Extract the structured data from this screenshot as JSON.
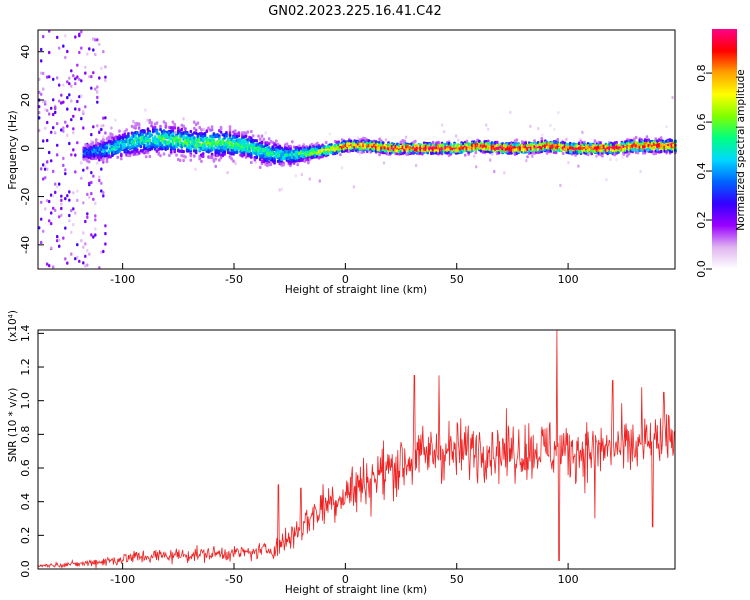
{
  "title": "GN02.2023.225.16.41.C42",
  "chart_data": [
    {
      "type": "heatmap",
      "title": "GN02.2023.225.16.41.C42",
      "xlabel": "Height of straight line (km)",
      "ylabel": "Frequency (Hz)",
      "xlim": [
        -138,
        148
      ],
      "ylim": [
        -50,
        49
      ],
      "x_ticks": [
        -100,
        -50,
        0,
        50,
        100
      ],
      "y_ticks": [
        -40,
        -20,
        0,
        20,
        40
      ],
      "colorbar": {
        "label": "Normalized spectral amplitude",
        "range": [
          0.0,
          0.98
        ],
        "ticks": [
          0.0,
          0.2,
          0.4,
          0.6,
          0.8
        ],
        "colormap": [
          "#ffffff",
          "#e0b4f0",
          "#9a00ff",
          "#3200ff",
          "#0064ff",
          "#00d8ff",
          "#00ff80",
          "#80ff00",
          "#ffff00",
          "#ffa000",
          "#ff0000",
          "#ff0088"
        ]
      },
      "ridge": {
        "x": [
          -118,
          -105,
          -95,
          -85,
          -75,
          -65,
          -55,
          -45,
          -35,
          -25,
          -18,
          -10,
          -5,
          0,
          10,
          20,
          30,
          40,
          50,
          60,
          70,
          80,
          90,
          100,
          110,
          120,
          130,
          140,
          148
        ],
        "y": [
          -2,
          0,
          3,
          4,
          3,
          2,
          2,
          1,
          -2,
          -3,
          -2,
          -1,
          0,
          1,
          1,
          0,
          0,
          0,
          0,
          1,
          0,
          0,
          1,
          0,
          0,
          0,
          1,
          1,
          1
        ],
        "spread": [
          3,
          5,
          6,
          6,
          6,
          6,
          6,
          5,
          5,
          4,
          3,
          2.5,
          2.5,
          2.2,
          2.2,
          2.2,
          2.2,
          2.2,
          2.2,
          2.2,
          2.2,
          2.2,
          2.2,
          2.2,
          2.2,
          2.2,
          2.5,
          2.5,
          2.5
        ],
        "peak": [
          0.35,
          0.45,
          0.5,
          0.55,
          0.55,
          0.55,
          0.55,
          0.55,
          0.5,
          0.5,
          0.6,
          0.7,
          0.8,
          0.85,
          0.9,
          0.95,
          0.95,
          0.95,
          0.95,
          0.95,
          0.95,
          0.95,
          0.95,
          0.95,
          0.95,
          0.95,
          0.9,
          0.9,
          0.9
        ]
      },
      "noise_region_x": [
        -138,
        -108
      ]
    },
    {
      "type": "line",
      "xlabel": "Height of straight line (km)",
      "ylabel": "SNR (10 * v/v)",
      "y_scale_note": "(x10⁴)",
      "xlim": [
        -138,
        148
      ],
      "ylim": [
        0.0,
        1.42
      ],
      "x_ticks": [
        -100,
        -50,
        0,
        50,
        100
      ],
      "y_ticks": [
        0.0,
        0.2,
        0.4,
        0.6,
        0.8,
        1.0,
        1.2,
        1.4
      ],
      "series": [
        {
          "color": "#ee2222",
          "trend_x": [
            -138,
            -120,
            -105,
            -95,
            -80,
            -60,
            -40,
            -30,
            -20,
            -10,
            0,
            10,
            20,
            30,
            40,
            50,
            60,
            70,
            80,
            90,
            95,
            100,
            110,
            120,
            130,
            140,
            148
          ],
          "trend_y": [
            0.02,
            0.03,
            0.05,
            0.07,
            0.08,
            0.09,
            0.1,
            0.13,
            0.25,
            0.38,
            0.45,
            0.52,
            0.6,
            0.65,
            0.7,
            0.7,
            0.72,
            0.7,
            0.7,
            0.72,
            0.7,
            0.7,
            0.7,
            0.72,
            0.72,
            0.75,
            0.78
          ],
          "noise_amp": [
            0.01,
            0.02,
            0.04,
            0.05,
            0.05,
            0.05,
            0.05,
            0.08,
            0.12,
            0.15,
            0.17,
            0.18,
            0.2,
            0.2,
            0.2,
            0.2,
            0.2,
            0.2,
            0.2,
            0.2,
            0.22,
            0.2,
            0.2,
            0.2,
            0.2,
            0.18,
            0.18
          ],
          "spikes": [
            [
              95,
              1.42
            ],
            [
              96,
              0.05
            ],
            [
              31,
              1.15
            ],
            [
              42,
              1.15
            ],
            [
              -30,
              0.5
            ],
            [
              -20,
              0.48
            ],
            [
              120,
              1.12
            ],
            [
              133,
              1.08
            ],
            [
              143,
              1.05
            ],
            [
              138,
              0.25
            ],
            [
              112,
              0.3
            ]
          ]
        }
      ]
    }
  ]
}
